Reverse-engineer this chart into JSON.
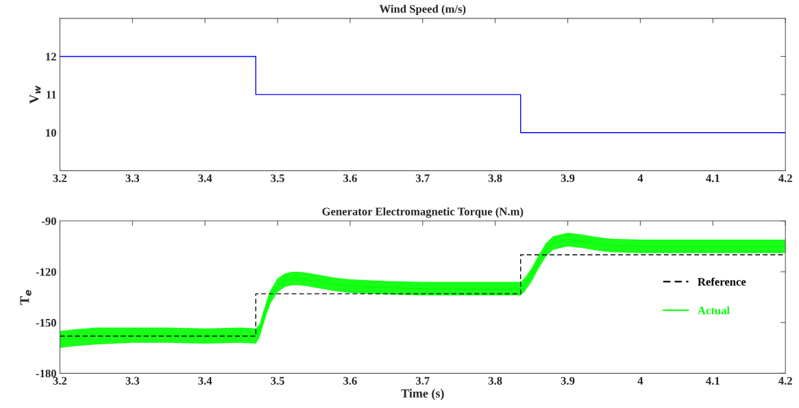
{
  "chart_data": [
    {
      "type": "step",
      "title": "Wind Speed (m/s)",
      "ylabel": "V$_{w}$",
      "xlim": [
        3.2,
        4.2
      ],
      "xticks": [
        3.2,
        3.3,
        3.4,
        3.5,
        3.6,
        3.7,
        3.8,
        3.9,
        4,
        4.1,
        4.2
      ],
      "ylim": [
        9,
        13
      ],
      "yticks": [
        10,
        11,
        12
      ],
      "grid": false,
      "legend": false,
      "series": [
        {
          "color": "#0000ff",
          "x": [
            3.2,
            3.47,
            3.835,
            4.2
          ],
          "values": [
            12,
            11,
            10,
            10
          ]
        }
      ]
    },
    {
      "type": "line",
      "title": "Generator Electromagnetic Torque (N.m)",
      "xlabel": "Time (s)",
      "ylabel": "T$_{e}$",
      "xlim": [
        3.2,
        4.2
      ],
      "xticks": [
        3.2,
        3.3,
        3.4,
        3.5,
        3.6,
        3.7,
        3.8,
        3.9,
        4,
        4.1,
        4.2
      ],
      "ylim": [
        -180,
        -90
      ],
      "yticks": [
        -90,
        -120,
        -150,
        -180
      ],
      "grid": false,
      "legend": "right",
      "series": [
        {
          "name": "Actual",
          "type": "line",
          "color": "#00ff00",
          "x": [
            3.2,
            3.22,
            3.25,
            3.3,
            3.35,
            3.4,
            3.45,
            3.47,
            3.475,
            3.48,
            3.485,
            3.49,
            3.5,
            3.51,
            3.52,
            3.53,
            3.54,
            3.56,
            3.58,
            3.6,
            3.65,
            3.7,
            3.75,
            3.8,
            3.835,
            3.84,
            3.85,
            3.86,
            3.87,
            3.88,
            3.9,
            3.92,
            3.94,
            3.96,
            4.0,
            4.1,
            4.2
          ],
          "values": [
            -160,
            -159,
            -158,
            -157.5,
            -157.5,
            -158,
            -157.5,
            -158,
            -155,
            -148,
            -141,
            -135,
            -128,
            -125,
            -124,
            -124,
            -124.5,
            -126,
            -127.5,
            -128.5,
            -129.5,
            -130,
            -130,
            -130,
            -130,
            -128,
            -122,
            -114,
            -107,
            -103,
            -101,
            -102,
            -103.5,
            -104.5,
            -105,
            -105,
            -105
          ],
          "lower": [
            -165,
            -164,
            -163,
            -162,
            -162,
            -162.5,
            -162,
            -162.5,
            -159,
            -152,
            -145,
            -139,
            -132,
            -129,
            -128,
            -128,
            -128.5,
            -130,
            -131.5,
            -132.5,
            -133.5,
            -134,
            -134,
            -134,
            -134,
            -132,
            -126,
            -118,
            -111,
            -107,
            -105,
            -106,
            -107.5,
            -108.5,
            -109,
            -109,
            -109
          ],
          "upper": [
            -155,
            -154,
            -153,
            -153,
            -153,
            -153.5,
            -153,
            -153.5,
            -151,
            -144,
            -137,
            -131,
            -124,
            -121,
            -120,
            -120,
            -120.5,
            -122,
            -123.5,
            -124.5,
            -125.5,
            -126,
            -126,
            -126,
            -126,
            -124,
            -118,
            -110,
            -103,
            -99,
            -97,
            -98,
            -99.5,
            -100.5,
            -101,
            -101,
            -101
          ]
        },
        {
          "name": "Reference",
          "type": "step",
          "color": "#000000",
          "line_style": "dashed",
          "x": [
            3.2,
            3.47,
            3.835,
            4.2
          ],
          "values": [
            -158,
            -133,
            -110,
            -110
          ]
        }
      ]
    }
  ]
}
